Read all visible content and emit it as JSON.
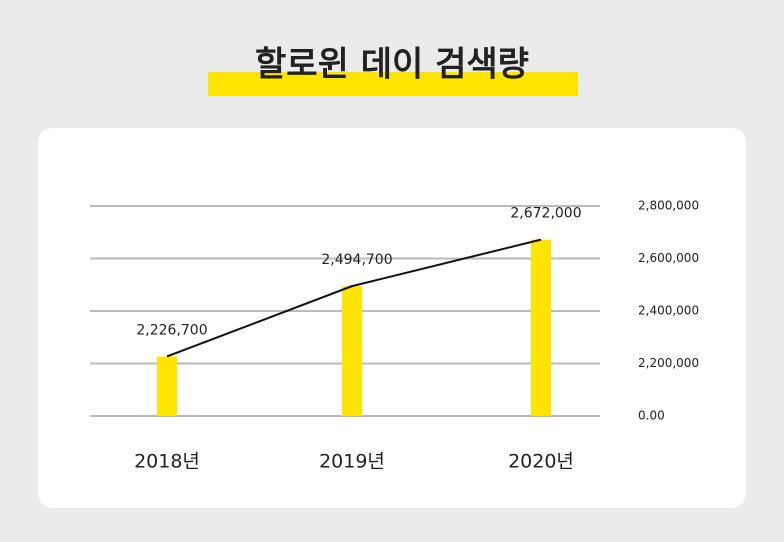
{
  "chart_data": {
    "type": "bar",
    "title": "할로윈 데이 검색량",
    "categories": [
      "2018년",
      "2019년",
      "2020년"
    ],
    "values": [
      2226700,
      2494700,
      2672000
    ],
    "value_labels": [
      "2,226,700",
      "2,494,700",
      "2,672,000"
    ],
    "color": "#ffe400",
    "line_color": "#111111",
    "ylim": [
      0,
      2800000
    ],
    "y_break": [
      0,
      2000000
    ],
    "yticks": [
      {
        "value": 0,
        "label": "0.00"
      },
      {
        "value": 2200000,
        "label": "2,200,000"
      },
      {
        "value": 2400000,
        "label": "2,400,000"
      },
      {
        "value": 2600000,
        "label": "2,600,000"
      },
      {
        "value": 2800000,
        "label": "2,800,000"
      }
    ],
    "grid": true
  }
}
